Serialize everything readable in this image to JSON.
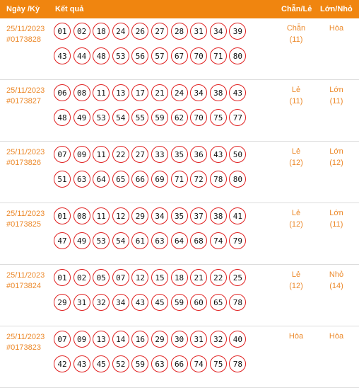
{
  "header": {
    "date_label": "Ngày /Kỳ",
    "result_label": "Kết quả",
    "parity_label": "Chẵn/Lẻ",
    "size_label": "Lớn/Nhỏ"
  },
  "rows": [
    {
      "date": "25/11/2023",
      "period": "#0173828",
      "line1": [
        "01",
        "02",
        "18",
        "24",
        "26",
        "27",
        "28",
        "31",
        "34",
        "39"
      ],
      "line2": [
        "43",
        "44",
        "48",
        "53",
        "56",
        "57",
        "67",
        "70",
        "71",
        "80"
      ],
      "parity": "Chẵn",
      "parity_count": "(11)",
      "size": "Hòa",
      "size_count": ""
    },
    {
      "date": "25/11/2023",
      "period": "#0173827",
      "line1": [
        "06",
        "08",
        "11",
        "13",
        "17",
        "21",
        "24",
        "34",
        "38",
        "43"
      ],
      "line2": [
        "48",
        "49",
        "53",
        "54",
        "55",
        "59",
        "62",
        "70",
        "75",
        "77"
      ],
      "parity": "Lẻ",
      "parity_count": "(11)",
      "size": "Lớn",
      "size_count": "(11)"
    },
    {
      "date": "25/11/2023",
      "period": "#0173826",
      "line1": [
        "07",
        "09",
        "11",
        "22",
        "27",
        "33",
        "35",
        "36",
        "43",
        "50"
      ],
      "line2": [
        "51",
        "63",
        "64",
        "65",
        "66",
        "69",
        "71",
        "72",
        "78",
        "80"
      ],
      "parity": "Lẻ",
      "parity_count": "(12)",
      "size": "Lớn",
      "size_count": "(12)"
    },
    {
      "date": "25/11/2023",
      "period": "#0173825",
      "line1": [
        "01",
        "08",
        "11",
        "12",
        "29",
        "34",
        "35",
        "37",
        "38",
        "41"
      ],
      "line2": [
        "47",
        "49",
        "53",
        "54",
        "61",
        "63",
        "64",
        "68",
        "74",
        "79"
      ],
      "parity": "Lẻ",
      "parity_count": "(12)",
      "size": "Lớn",
      "size_count": "(11)"
    },
    {
      "date": "25/11/2023",
      "period": "#0173824",
      "line1": [
        "01",
        "02",
        "05",
        "07",
        "12",
        "15",
        "18",
        "21",
        "22",
        "25"
      ],
      "line2": [
        "29",
        "31",
        "32",
        "34",
        "43",
        "45",
        "59",
        "60",
        "65",
        "78"
      ],
      "parity": "Lẻ",
      "parity_count": "(12)",
      "size": "Nhỏ",
      "size_count": "(14)"
    },
    {
      "date": "25/11/2023",
      "period": "#0173823",
      "line1": [
        "07",
        "09",
        "13",
        "14",
        "16",
        "29",
        "30",
        "31",
        "32",
        "40"
      ],
      "line2": [
        "42",
        "43",
        "45",
        "52",
        "59",
        "63",
        "66",
        "74",
        "75",
        "78"
      ],
      "parity": "Hòa",
      "parity_count": "",
      "size": "Hòa",
      "size_count": ""
    }
  ]
}
